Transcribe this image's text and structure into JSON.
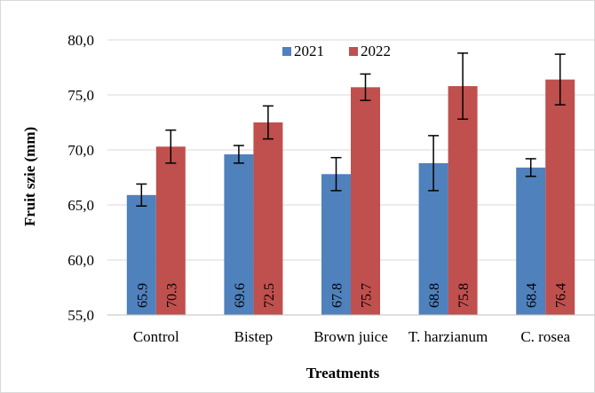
{
  "chart_data": {
    "type": "bar",
    "title": "",
    "xlabel": "Treatments",
    "ylabel": "Fruit szie (mm)",
    "ylim": [
      55,
      80
    ],
    "yticks": [
      "55,0",
      "60,0",
      "65,0",
      "70,0",
      "75,0",
      "80,0"
    ],
    "categories": [
      "Control",
      "Bistep",
      "Brown juice",
      "T. harzianum",
      "C. rosea"
    ],
    "series": [
      {
        "name": "2021",
        "color": "#4f81bd",
        "values": [
          65.9,
          69.6,
          67.8,
          68.8,
          68.4
        ],
        "errors": [
          1.0,
          0.8,
          1.5,
          2.5,
          0.8
        ],
        "labels": [
          "65.9",
          "69.6",
          "67.8",
          "68.8",
          "68.4"
        ]
      },
      {
        "name": "2022",
        "color": "#c0504d",
        "values": [
          70.3,
          72.5,
          75.7,
          75.8,
          76.4
        ],
        "errors": [
          1.5,
          1.5,
          1.2,
          3.0,
          2.3
        ],
        "labels": [
          "70.3",
          "72.5",
          "75.7",
          "75.8",
          "76.4"
        ]
      }
    ],
    "grid": true,
    "legend_position": "top-center"
  }
}
